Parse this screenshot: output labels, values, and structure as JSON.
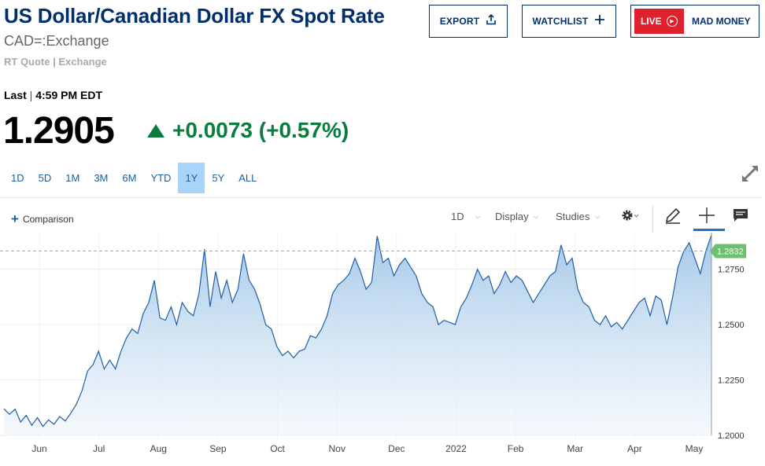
{
  "header": {
    "title": "US Dollar/Canadian Dollar FX Spot Rate",
    "symbol": "CAD=:Exchange",
    "quote_type": "RT Quote | Exchange",
    "export_label": "EXPORT",
    "watchlist_label": "WATCHLIST",
    "live_label": "LIVE",
    "mad_money_label": "MAD MONEY"
  },
  "quote": {
    "last_label": "Last",
    "last_sep": " | ",
    "time": "4:59 PM EDT",
    "price": "1.2905",
    "change": "+0.0073 (+0.57%)",
    "direction": "up",
    "up_color": "#0b7b3e"
  },
  "ranges": [
    {
      "label": "1D",
      "active": false
    },
    {
      "label": "5D",
      "active": false
    },
    {
      "label": "1M",
      "active": false
    },
    {
      "label": "3M",
      "active": false
    },
    {
      "label": "6M",
      "active": false
    },
    {
      "label": "YTD",
      "active": false
    },
    {
      "label": "1Y",
      "active": true
    },
    {
      "label": "5Y",
      "active": false
    },
    {
      "label": "ALL",
      "active": false
    }
  ],
  "toolbar": {
    "comparison_label": "Comparison",
    "interval_label": "1D",
    "display_label": "Display",
    "studies_label": "Studies"
  },
  "chart_data": {
    "type": "area",
    "title": "",
    "xlabel": "",
    "ylabel": "",
    "x_ticks": [
      "Jun",
      "Jul",
      "Aug",
      "Sep",
      "Oct",
      "Nov",
      "Dec",
      "2022",
      "Feb",
      "Mar",
      "Apr",
      "May"
    ],
    "y_ticks": [
      1.2,
      1.225,
      1.25,
      1.275
    ],
    "ylim": [
      1.2,
      1.288
    ],
    "current_value": 1.2832,
    "current_label": "1.2832",
    "line_color": "#1f5fa6",
    "fill_color_top": "#9cc3e6",
    "grid": true,
    "reference_line": "dashed at current value",
    "series": [
      {
        "values": [
          1.212,
          1.2095,
          1.2118,
          1.206,
          1.209,
          1.2045,
          1.208,
          1.204,
          1.207,
          1.205,
          1.2085,
          1.2065,
          1.21,
          1.214,
          1.22,
          1.229,
          1.232,
          1.238,
          1.23,
          1.234,
          1.23,
          1.238,
          1.244,
          1.248,
          1.246,
          1.255,
          1.26,
          1.27,
          1.253,
          1.252,
          1.258,
          1.25,
          1.26,
          1.256,
          1.254,
          1.264,
          1.284,
          1.258,
          1.274,
          1.262,
          1.27,
          1.26,
          1.266,
          1.282,
          1.27,
          1.266,
          1.259,
          1.25,
          1.248,
          1.24,
          1.236,
          1.238,
          1.235,
          1.238,
          1.239,
          1.245,
          1.244,
          1.248,
          1.254,
          1.264,
          1.268,
          1.27,
          1.273,
          1.28,
          1.274,
          1.266,
          1.269,
          1.29,
          1.278,
          1.28,
          1.272,
          1.277,
          1.28,
          1.276,
          1.272,
          1.264,
          1.26,
          1.258,
          1.25,
          1.252,
          1.251,
          1.25,
          1.258,
          1.262,
          1.268,
          1.275,
          1.27,
          1.272,
          1.264,
          1.268,
          1.274,
          1.269,
          1.272,
          1.27,
          1.265,
          1.26,
          1.264,
          1.268,
          1.272,
          1.274,
          1.286,
          1.277,
          1.28,
          1.266,
          1.26,
          1.258,
          1.252,
          1.25,
          1.254,
          1.249,
          1.251,
          1.248,
          1.252,
          1.256,
          1.26,
          1.262,
          1.254,
          1.263,
          1.261,
          1.25,
          1.262,
          1.276,
          1.283,
          1.287,
          1.28,
          1.273,
          1.2832,
          1.2905
        ]
      }
    ]
  }
}
